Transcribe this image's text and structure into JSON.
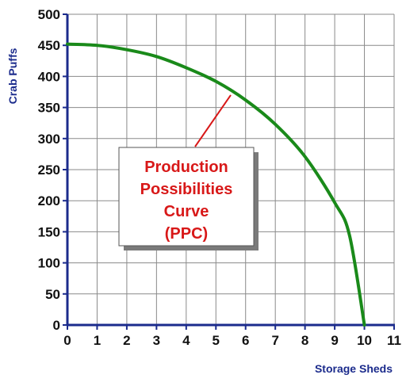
{
  "chart_data": {
    "type": "line",
    "xlabel": "Storage Sheds",
    "ylabel": "Crab Puffs",
    "xlim": [
      0,
      11
    ],
    "ylim": [
      0,
      500
    ],
    "x_ticks": [
      "0",
      "1",
      "2",
      "3",
      "4",
      "5",
      "6",
      "7",
      "8",
      "9",
      "10",
      "11"
    ],
    "y_ticks": [
      "0",
      "50",
      "100",
      "150",
      "200",
      "250",
      "300",
      "350",
      "400",
      "450",
      "500"
    ],
    "grid": true,
    "series": [
      {
        "color": "#1a8a1a",
        "x": [
          0,
          1,
          2,
          3,
          4,
          5,
          6,
          7,
          8,
          9,
          9.5,
          10
        ],
        "y": [
          452,
          450,
          443,
          432,
          414,
          392,
          362,
          323,
          271,
          197,
          144,
          0
        ]
      }
    ],
    "annotation": {
      "lines": [
        "Production",
        "Possibilities",
        "Curve",
        "(PPC)"
      ],
      "text_color": "#d81818",
      "pointer_target": {
        "x": 5.5,
        "y": 370
      }
    },
    "colors": {
      "axis": "#1b2b8c",
      "grid": "#8a8a8a",
      "curve": "#1a8a1a",
      "annotation": "#d81818"
    }
  }
}
